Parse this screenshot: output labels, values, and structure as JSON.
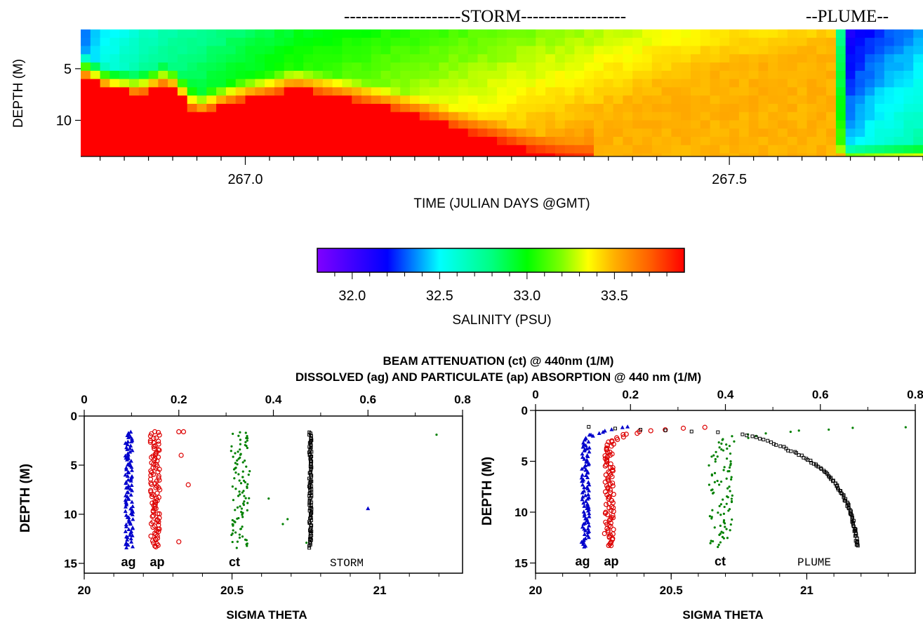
{
  "chart_data": [
    {
      "id": "salinity-section",
      "type": "heatmap",
      "annotations": [
        "--------------------STORM------------------",
        "--PLUME--"
      ],
      "xlabel": "TIME (JULIAN DAYS @GMT)",
      "ylabel": "DEPTH (M)",
      "x_ticklabels": [
        "267.0",
        "267.5"
      ],
      "x_ticks": [
        267.0,
        267.5
      ],
      "y_ticklabels": [
        "5",
        "10"
      ],
      "y_ticks": [
        5,
        10
      ],
      "xlim": [
        266.83,
        267.7
      ],
      "ylim": [
        13.5,
        1.2
      ],
      "value_range": [
        31.8,
        33.9
      ],
      "x_step": 0.01,
      "interface_depth": [
        [
          266.83,
          5.0
        ],
        [
          266.86,
          6.5
        ],
        [
          266.89,
          7.0
        ],
        [
          266.92,
          6.0
        ],
        [
          266.95,
          9.0
        ],
        [
          266.98,
          8.0
        ],
        [
          267.0,
          7.5
        ],
        [
          267.03,
          7.0
        ],
        [
          267.05,
          6.5
        ],
        [
          267.08,
          7.0
        ],
        [
          267.12,
          7.8
        ],
        [
          267.15,
          8.5
        ],
        [
          267.19,
          9.5
        ],
        [
          267.22,
          10.5
        ],
        [
          267.26,
          11.5
        ],
        [
          267.29,
          12.5
        ],
        [
          267.33,
          13.4
        ],
        [
          267.38,
          14.0
        ],
        [
          267.7,
          14.0
        ]
      ],
      "surface_profile": [
        [
          266.83,
          32.3
        ],
        [
          266.85,
          32.45
        ],
        [
          266.9,
          32.65
        ],
        [
          266.95,
          32.75
        ],
        [
          267.0,
          32.85
        ],
        [
          267.05,
          32.95
        ],
        [
          267.1,
          33.0
        ],
        [
          267.15,
          33.05
        ],
        [
          267.2,
          33.1
        ],
        [
          267.3,
          33.2
        ],
        [
          267.35,
          33.25
        ],
        [
          267.4,
          33.3
        ],
        [
          267.45,
          33.35
        ],
        [
          267.5,
          33.4
        ],
        [
          267.55,
          33.42
        ],
        [
          267.6,
          33.45
        ],
        [
          267.61,
          33.45
        ],
        [
          267.62,
          32.1
        ],
        [
          267.65,
          32.25
        ],
        [
          267.7,
          32.4
        ]
      ],
      "bottom_value": 33.4,
      "colorbar": {
        "ticklabels": [
          "32.0",
          "32.5",
          "33.0",
          "33.5"
        ],
        "ticks": [
          32.0,
          32.5,
          33.0,
          33.5
        ],
        "range": [
          31.8,
          33.9
        ],
        "label": "SALINITY (PSU)",
        "stops": [
          [
            31.8,
            "#8000ff"
          ],
          [
            32.0,
            "#4000ff"
          ],
          [
            32.2,
            "#0000ff"
          ],
          [
            32.35,
            "#0080ff"
          ],
          [
            32.5,
            "#00ffff"
          ],
          [
            32.8,
            "#00ff80"
          ],
          [
            33.0,
            "#00ff00"
          ],
          [
            33.2,
            "#80ff00"
          ],
          [
            33.35,
            "#ffff00"
          ],
          [
            33.5,
            "#ffb000"
          ],
          [
            33.7,
            "#ff6000"
          ],
          [
            33.9,
            "#ff0000"
          ]
        ]
      }
    },
    {
      "id": "storm-profiles",
      "type": "scatter",
      "panel_text": "STORM",
      "xlabel": "SIGMA THETA",
      "ylabel": "DEPTH (M)",
      "x_ticklabels": [
        "20",
        "20.5",
        "21"
      ],
      "x_ticks": [
        20,
        20.5,
        21
      ],
      "xlim": [
        20,
        21.28
      ],
      "top_ticklabels": [
        "0",
        "0.2",
        "0.4",
        "0.6",
        "0.8"
      ],
      "top_ticks": [
        0,
        0.2,
        0.4,
        0.6,
        0.8
      ],
      "top_xlim": [
        0,
        0.8
      ],
      "y_ticklabels": [
        "0",
        "5",
        "10",
        "15"
      ],
      "y_ticks": [
        0,
        5,
        10,
        15
      ],
      "ylim": [
        16,
        0
      ],
      "series": [
        {
          "name": "ag",
          "x": 0.095,
          "spread": 0.008,
          "color": "#0000cc",
          "marker": "triangle",
          "outliers": [
            [
              0.6,
              9.4
            ]
          ]
        },
        {
          "name": "ap",
          "x": 0.15,
          "spread": 0.01,
          "color": "#dd0000",
          "marker": "circle",
          "outliers": [
            [
              0.2,
              1.6
            ],
            [
              0.21,
              1.6
            ],
            [
              0.205,
              4.0
            ],
            [
              0.22,
              7.0
            ],
            [
              0.2,
              12.8
            ]
          ]
        },
        {
          "name": "ct",
          "x": 0.33,
          "spread": 0.02,
          "color": "#008000",
          "marker": "dot",
          "outliers": [
            [
              0.47,
              12.9
            ],
            [
              0.42,
              11.0
            ],
            [
              0.43,
              10.5
            ],
            [
              0.39,
              8.4
            ],
            [
              0.745,
              1.9
            ]
          ]
        },
        {
          "name": "sigma-theta",
          "x": 20.765,
          "spread": 0.004,
          "color": "#000000",
          "marker": "square",
          "axis": "bottom",
          "outliers": []
        }
      ]
    },
    {
      "id": "plume-profiles",
      "type": "scatter",
      "panel_text": "PLUME",
      "xlabel": "SIGMA THETA",
      "ylabel": "DEPTH (M)",
      "x_ticklabels": [
        "20",
        "20.5",
        "21"
      ],
      "x_ticks": [
        20,
        20.5,
        21
      ],
      "xlim": [
        20,
        21.4
      ],
      "top_ticklabels": [
        "0",
        "0.2",
        "0.4",
        "0.6",
        "0.8"
      ],
      "top_ticks": [
        0,
        0.2,
        0.4,
        0.6,
        0.8
      ],
      "top_xlim": [
        0,
        0.8
      ],
      "y_ticklabels": [
        "0",
        "5",
        "10",
        "15"
      ],
      "y_ticks": [
        0,
        5,
        10,
        15
      ],
      "ylim": [
        16,
        0
      ],
      "series": [
        {
          "name": "ag",
          "deep_x": 0.105,
          "surface_x": 0.2,
          "spread": 0.008,
          "color": "#0000cc",
          "marker": "triangle"
        },
        {
          "name": "ap",
          "deep_x": 0.155,
          "surface_x": 0.35,
          "spread": 0.01,
          "color": "#dd0000",
          "marker": "circle"
        },
        {
          "name": "ct",
          "deep_x": 0.39,
          "surface_x": 0.78,
          "spread": 0.025,
          "color": "#008000",
          "marker": "dot"
        },
        {
          "name": "sigma-theta",
          "deep_x": 21.2,
          "surface_x": 20.2,
          "spread": 0.004,
          "color": "#000000",
          "marker": "square",
          "axis": "bottom"
        }
      ]
    }
  ],
  "figure_texts": {
    "title_line1": "BEAM ATTENUATION (ct) @ 440nm (1/M)",
    "title_line2": "DISSOLVED (ag) AND PARTICULATE (ap) ABSORPTION @ 440 nm (1/M)"
  }
}
